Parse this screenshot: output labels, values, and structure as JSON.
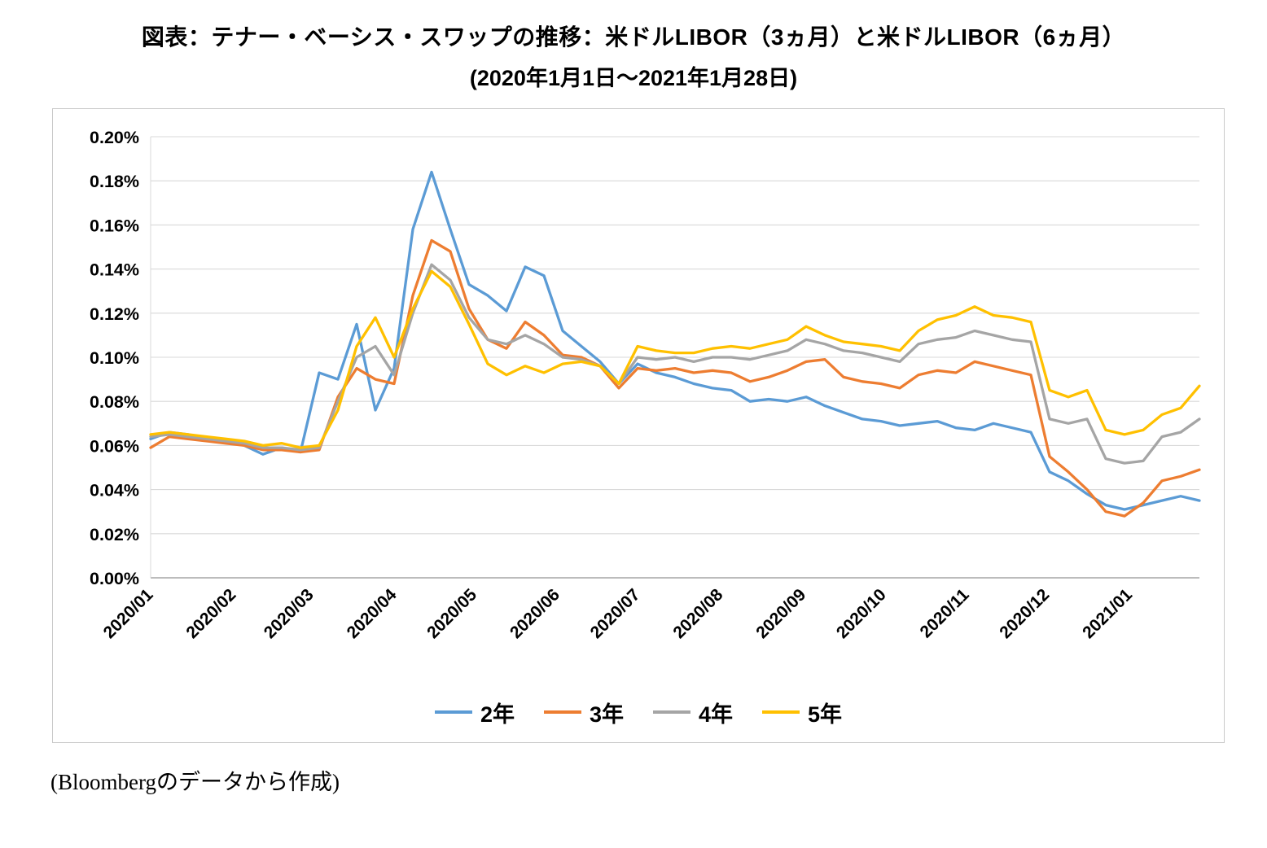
{
  "title": {
    "line1": "図表：テナー・ベーシス・スワップの推移：米ドルLIBOR（3ヵ月）と米ドルLIBOR（6ヵ月）",
    "line2": "(2020年1月1日～2021年1月28日)"
  },
  "source": "(Bloombergのデータから作成)",
  "chart_data": {
    "type": "line",
    "title": "テナー・ベーシス・スワップの推移：米ドルLIBOR（3ヵ月）と米ドルLIBOR（6ヵ月）",
    "period_start": "2020/01/01",
    "period_end": "2021/01/28",
    "sampling": "weekly",
    "unit": "percent",
    "ylim": [
      0.0,
      0.2
    ],
    "y_tick_step": 0.02,
    "y_tick_format": "0.00%",
    "grid": "horizontal",
    "legend_position": "bottom",
    "x_tick_labels": [
      "2020/01",
      "2020/02",
      "2020/03",
      "2020/04",
      "2020/05",
      "2020/06",
      "2020/07",
      "2020/08",
      "2020/09",
      "2020/10",
      "2020/11",
      "2020/12",
      "2021/01"
    ],
    "x_tick_day_offsets": [
      0,
      31,
      60,
      91,
      121,
      152,
      182,
      213,
      244,
      274,
      305,
      335,
      366
    ],
    "total_days": 392,
    "series": [
      {
        "name": "2年",
        "color": "#5B9BD5",
        "values": [
          0.063,
          0.066,
          0.065,
          0.063,
          0.062,
          0.06,
          0.056,
          0.059,
          0.057,
          0.093,
          0.09,
          0.115,
          0.076,
          0.095,
          0.158,
          0.184,
          0.158,
          0.133,
          0.128,
          0.121,
          0.141,
          0.137,
          0.112,
          0.105,
          0.098,
          0.088,
          0.097,
          0.093,
          0.091,
          0.088,
          0.086,
          0.085,
          0.08,
          0.081,
          0.08,
          0.082,
          0.078,
          0.075,
          0.072,
          0.071,
          0.069,
          0.07,
          0.071,
          0.068,
          0.067,
          0.07,
          0.068,
          0.066,
          0.048,
          0.044,
          0.038,
          0.033,
          0.031,
          0.033,
          0.035,
          0.037,
          0.035
        ]
      },
      {
        "name": "3年",
        "color": "#ED7D31",
        "values": [
          0.059,
          0.064,
          0.063,
          0.062,
          0.061,
          0.06,
          0.058,
          0.058,
          0.057,
          0.058,
          0.082,
          0.095,
          0.09,
          0.088,
          0.128,
          0.153,
          0.148,
          0.122,
          0.108,
          0.104,
          0.116,
          0.11,
          0.101,
          0.1,
          0.096,
          0.086,
          0.095,
          0.094,
          0.095,
          0.093,
          0.094,
          0.093,
          0.089,
          0.091,
          0.094,
          0.098,
          0.099,
          0.091,
          0.089,
          0.088,
          0.086,
          0.092,
          0.094,
          0.093,
          0.098,
          0.096,
          0.094,
          0.092,
          0.055,
          0.048,
          0.04,
          0.03,
          0.028,
          0.034,
          0.044,
          0.046,
          0.049
        ]
      },
      {
        "name": "4年",
        "color": "#A5A5A5",
        "values": [
          0.064,
          0.065,
          0.064,
          0.063,
          0.062,
          0.061,
          0.059,
          0.059,
          0.058,
          0.059,
          0.08,
          0.1,
          0.105,
          0.092,
          0.12,
          0.142,
          0.135,
          0.118,
          0.108,
          0.106,
          0.11,
          0.106,
          0.1,
          0.099,
          0.096,
          0.088,
          0.1,
          0.099,
          0.1,
          0.098,
          0.1,
          0.1,
          0.099,
          0.101,
          0.103,
          0.108,
          0.106,
          0.103,
          0.102,
          0.1,
          0.098,
          0.106,
          0.108,
          0.109,
          0.112,
          0.11,
          0.108,
          0.107,
          0.072,
          0.07,
          0.072,
          0.054,
          0.052,
          0.053,
          0.064,
          0.066,
          0.072
        ]
      },
      {
        "name": "5年",
        "color": "#FFC000",
        "values": [
          0.065,
          0.066,
          0.065,
          0.064,
          0.063,
          0.062,
          0.06,
          0.061,
          0.059,
          0.06,
          0.076,
          0.105,
          0.118,
          0.1,
          0.122,
          0.139,
          0.132,
          0.115,
          0.097,
          0.092,
          0.096,
          0.093,
          0.097,
          0.098,
          0.096,
          0.088,
          0.105,
          0.103,
          0.102,
          0.102,
          0.104,
          0.105,
          0.104,
          0.106,
          0.108,
          0.114,
          0.11,
          0.107,
          0.106,
          0.105,
          0.103,
          0.112,
          0.117,
          0.119,
          0.123,
          0.119,
          0.118,
          0.116,
          0.085,
          0.082,
          0.085,
          0.067,
          0.065,
          0.067,
          0.074,
          0.077,
          0.087
        ]
      }
    ]
  }
}
